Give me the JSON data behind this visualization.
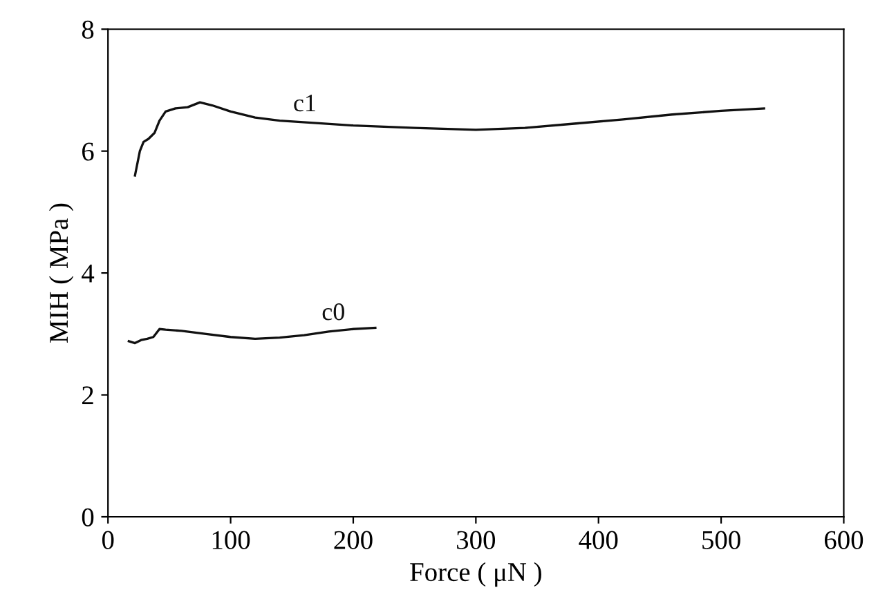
{
  "chart_data": {
    "type": "line",
    "xlabel": "Force ( μN )",
    "ylabel": "MIH ( MPa )",
    "xlim": [
      0,
      600
    ],
    "xticks": [
      0,
      100,
      200,
      300,
      400,
      500,
      600
    ],
    "ylim": [
      0,
      8
    ],
    "yticks": [
      0,
      2,
      4,
      6,
      8
    ],
    "grid": false,
    "legend": false,
    "marker": "none",
    "line_style": "solid",
    "series": [
      {
        "name": "c1",
        "color": "#111111",
        "x": [
          22,
          26,
          29,
          33,
          38,
          42,
          47,
          55,
          65,
          75,
          85,
          100,
          120,
          140,
          170,
          200,
          250,
          300,
          340,
          380,
          420,
          460,
          500,
          535
        ],
        "values": [
          5.6,
          6.0,
          6.15,
          6.2,
          6.3,
          6.5,
          6.65,
          6.7,
          6.72,
          6.8,
          6.75,
          6.65,
          6.55,
          6.5,
          6.46,
          6.42,
          6.38,
          6.35,
          6.38,
          6.45,
          6.52,
          6.6,
          6.66,
          6.7
        ]
      },
      {
        "name": "c0",
        "color": "#111111",
        "x": [
          17,
          22,
          27,
          32,
          37,
          42,
          47,
          60,
          80,
          100,
          120,
          140,
          160,
          180,
          200,
          218
        ],
        "values": [
          2.88,
          2.85,
          2.9,
          2.92,
          2.95,
          3.08,
          3.07,
          3.05,
          3.0,
          2.95,
          2.92,
          2.94,
          2.98,
          3.04,
          3.08,
          3.1
        ]
      }
    ]
  }
}
